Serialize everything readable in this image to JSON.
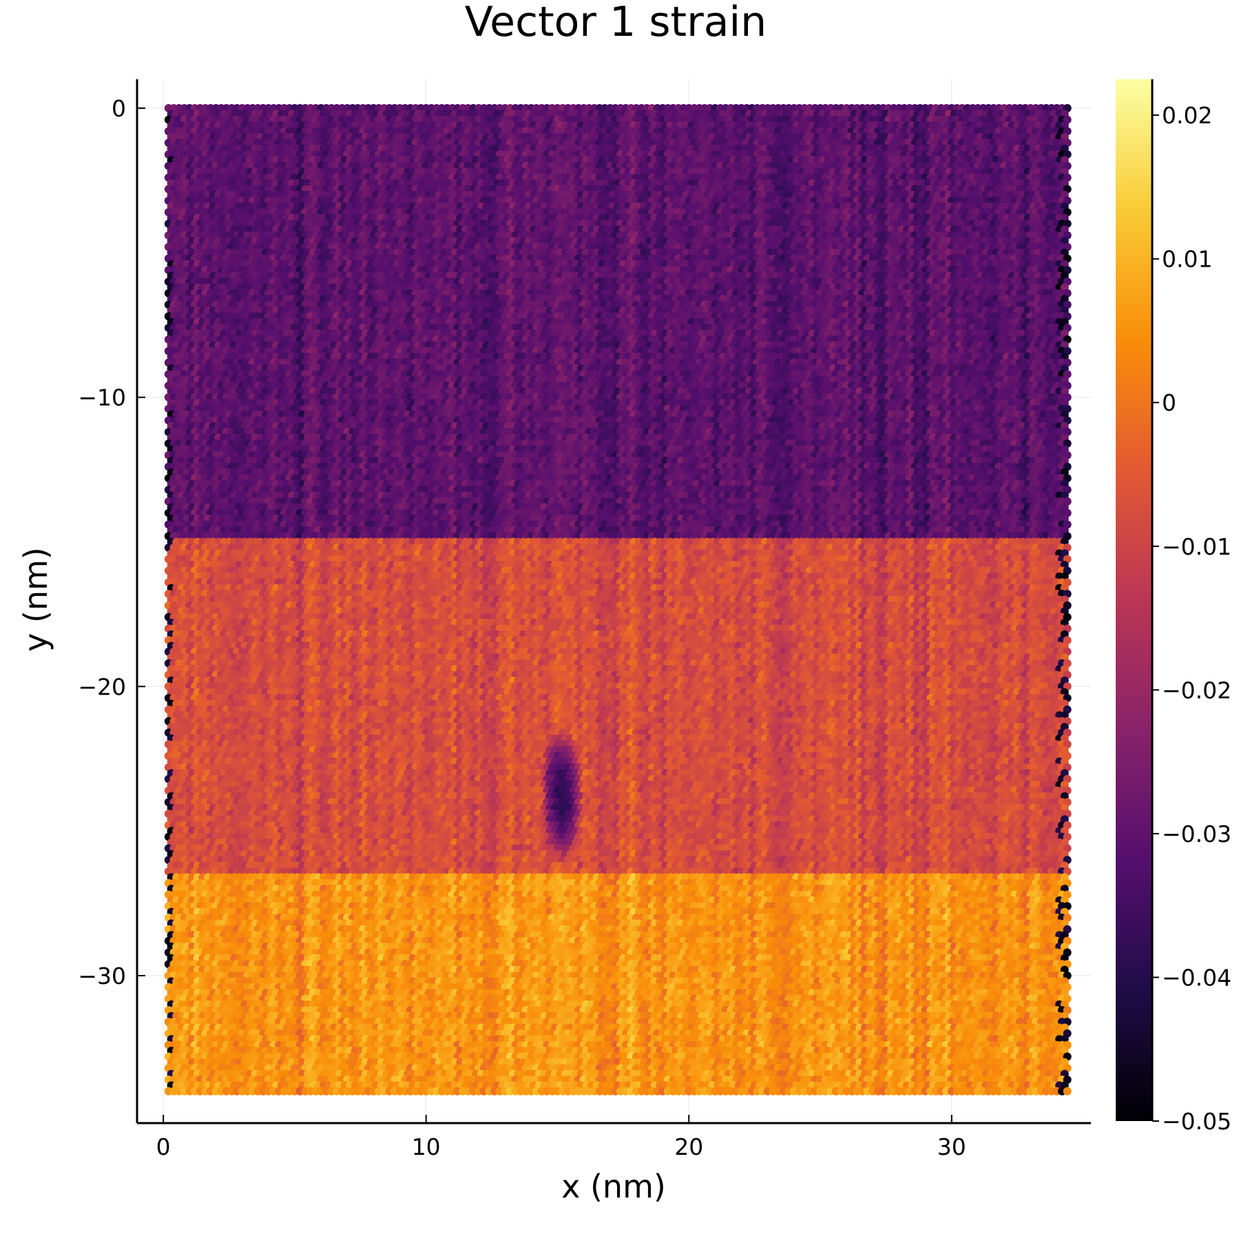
{
  "chart_data": {
    "type": "scatter",
    "title": "Vector 1 strain",
    "xlabel": "x (nm)",
    "ylabel": "y (nm)",
    "xlim": [
      -1,
      35.3
    ],
    "ylim": [
      -35.1,
      1
    ],
    "xticks": [
      0,
      10,
      20,
      30
    ],
    "xtick_labels": [
      "0",
      "10",
      "20",
      "30"
    ],
    "yticks": [
      0,
      -10,
      -20,
      -30
    ],
    "ytick_labels": [
      "0",
      "−10",
      "−20",
      "−30"
    ],
    "grid": true,
    "legend": "none",
    "colorbar": {
      "colormap": "inferno",
      "range": [
        -0.05,
        0.0225
      ],
      "ticks": [
        0.02,
        0.01,
        0,
        -0.01,
        -0.02,
        -0.03,
        -0.04,
        -0.05
      ],
      "tick_labels": [
        "0.02",
        "0.01",
        "0",
        "−0.01",
        "−0.02",
        "−0.03",
        "−0.04",
        "−0.05"
      ],
      "colors": [
        "#000004",
        "#1f0c48",
        "#550f6d",
        "#88226a",
        "#ba3655",
        "#e35933",
        "#f98e09",
        "#f9cb35",
        "#fcffa4"
      ]
    },
    "lattice": {
      "x_range": [
        0.2,
        34.4
      ],
      "y_range": [
        -34.1,
        0
      ],
      "spacing_x": 0.2,
      "spacing_y": 0.2,
      "row_offset": 0.1
    },
    "regions": [
      {
        "y_range": [
          -14.9,
          0
        ],
        "mean_strain": -0.031,
        "spread": 0.006
      },
      {
        "y_range": [
          -26.4,
          -14.9
        ],
        "mean_strain": -0.008,
        "spread": 0.006
      },
      {
        "y_range": [
          -34.1,
          -26.4
        ],
        "mean_strain": 0.005,
        "spread": 0.006
      }
    ],
    "features": [
      {
        "kind": "low-strain-patch",
        "x": 15.2,
        "y": -23.8,
        "strain": -0.04
      }
    ]
  }
}
